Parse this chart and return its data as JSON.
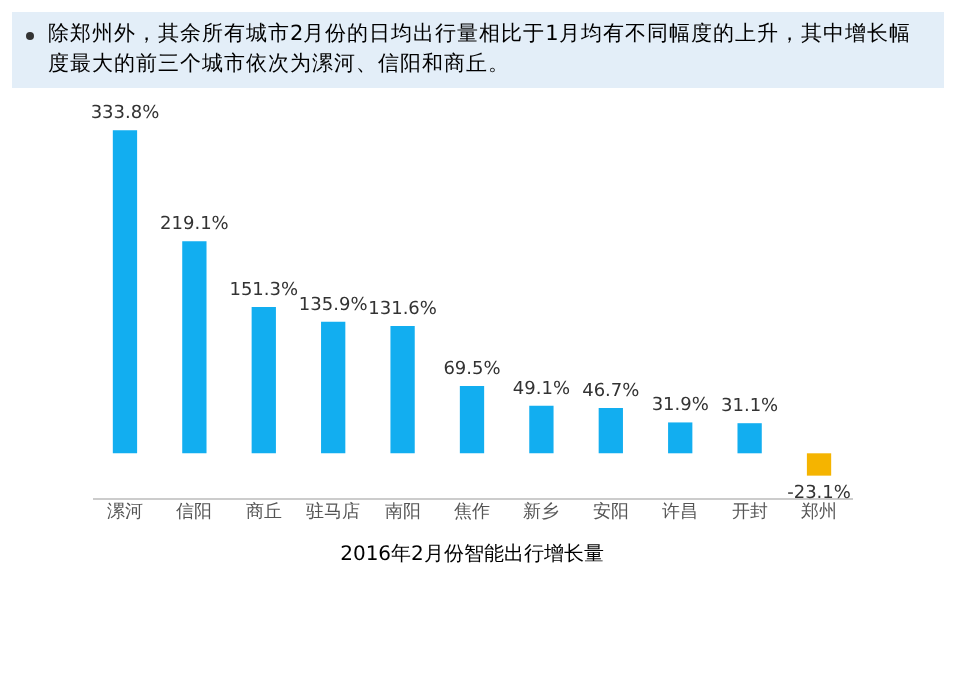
{
  "chart_data": {
    "type": "bar",
    "title": "2016年2月份智能出行增长量",
    "annotations": [
      "除郑州外，其余所有城市2月份的日均出行量相比于1月均有不同幅度的上升，其中增长幅度最大的前三个城市依次为漯河、信阳和商丘。"
    ],
    "categories": [
      "漯河",
      "信阳",
      "商丘",
      "驻马店",
      "南阳",
      "焦作",
      "新乡",
      "安阳",
      "许昌",
      "开封",
      "郑州"
    ],
    "values": [
      333.8,
      219.1,
      151.3,
      135.9,
      131.6,
      69.5,
      49.1,
      46.7,
      31.9,
      31.1,
      -23.1
    ],
    "colors": [
      "#12aef0",
      "#12aef0",
      "#12aef0",
      "#12aef0",
      "#12aef0",
      "#12aef0",
      "#12aef0",
      "#12aef0",
      "#12aef0",
      "#12aef0",
      "#f5b400"
    ],
    "value_labels": [
      "333.8%",
      "219.1%",
      "151.3%",
      "135.9%",
      "131.6%",
      "69.5%",
      "49.1%",
      "46.7%",
      "31.9%",
      "31.1%",
      "-23.1%"
    ],
    "grid": false
  }
}
